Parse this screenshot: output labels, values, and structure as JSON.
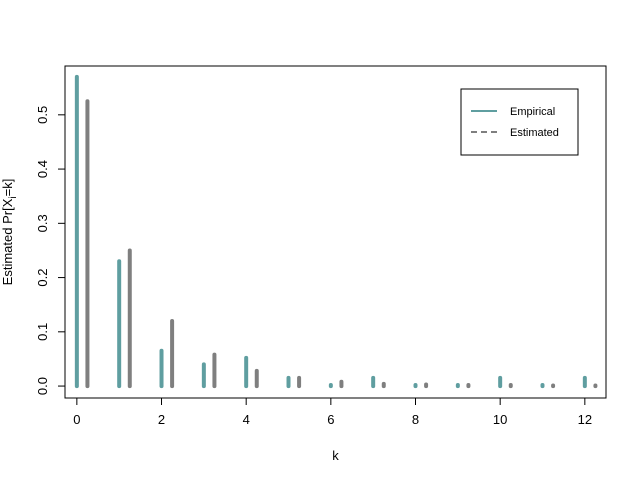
{
  "chart_data": {
    "type": "bar",
    "xlabel": "k",
    "ylabel_prefix": "Estimated Pr[X",
    "ylabel_subscript": "i",
    "ylabel_suffix": "=k]",
    "x": [
      0,
      1,
      2,
      3,
      4,
      5,
      6,
      7,
      8,
      9,
      10,
      11,
      12
    ],
    "xlim": [
      -0.28,
      12.5
    ],
    "ylim": [
      -0.022,
      0.59
    ],
    "xticks": [
      "0",
      "2",
      "4",
      "6",
      "8",
      "10",
      "12"
    ],
    "yticks": [
      "0.0",
      "0.1",
      "0.2",
      "0.3",
      "0.4",
      "0.5"
    ],
    "grid": false,
    "legend_position": "top-right",
    "series": [
      {
        "name": "Empirical",
        "color": "#5f9ea0",
        "line_style": "solid",
        "offset": 0,
        "values": [
          0.57,
          0.23,
          0.065,
          0.04,
          0.052,
          0.015,
          0.002,
          0.015,
          0.002,
          0.002,
          0.015,
          0.002,
          0.015
        ]
      },
      {
        "name": "Estimated",
        "color": "#7f7f7f",
        "line_style": "dashed",
        "offset": 0.25,
        "values": [
          0.525,
          0.25,
          0.12,
          0.058,
          0.028,
          0.015,
          0.008,
          0.004,
          0.003,
          0.002,
          0.002,
          0.001,
          0.001
        ]
      }
    ]
  }
}
